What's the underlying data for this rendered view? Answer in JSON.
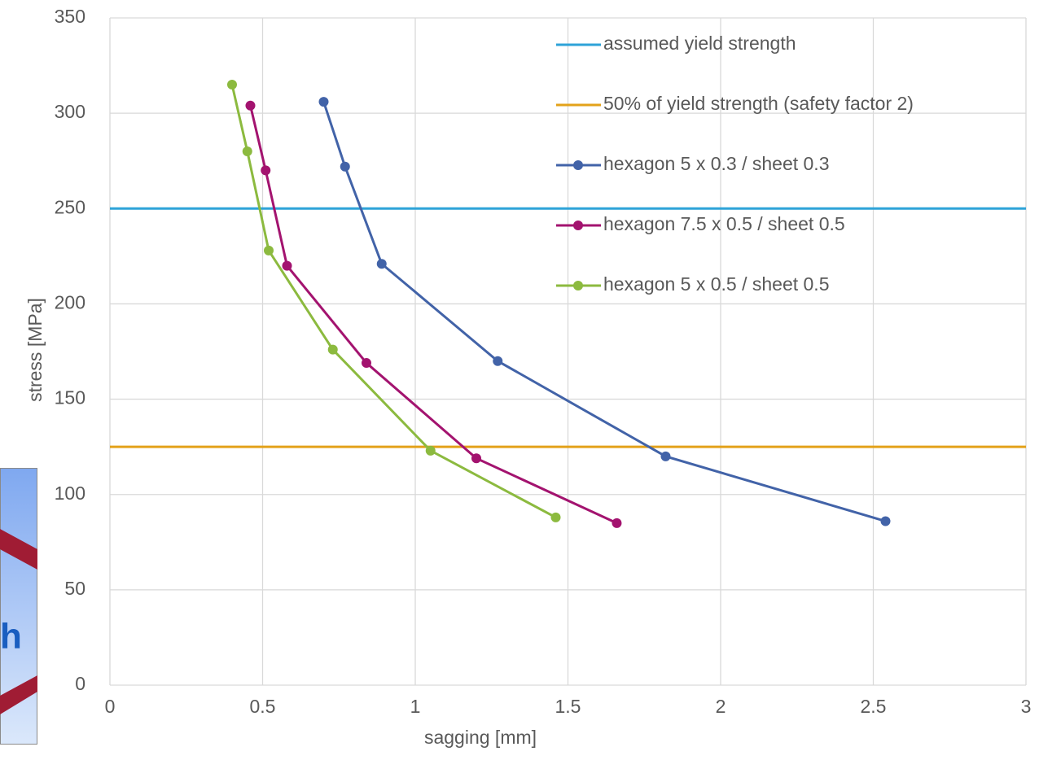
{
  "chart_data": {
    "type": "line",
    "xlabel": "sagging [mm]",
    "ylabel": "stress [MPa]",
    "xlim": [
      0,
      3
    ],
    "xticks": [
      0,
      0.5,
      1,
      1.5,
      2,
      2.5,
      3
    ],
    "ylim": [
      0,
      350
    ],
    "yticks": [
      0,
      50,
      100,
      150,
      200,
      250,
      300,
      350
    ],
    "grid": true,
    "legend": "upper right",
    "hlines": [
      {
        "name": "assumed yield strength",
        "color": "#2ea3d8",
        "value": 250
      },
      {
        "name": "50% of yield strength (safety factor 2)",
        "color": "#e3a21a",
        "value": 125
      }
    ],
    "series": [
      {
        "name": "hexagon 5 x 0.3 / sheet 0.3",
        "color": "#4263a8",
        "x": [
          0.7,
          0.77,
          0.89,
          1.27,
          1.82,
          2.54
        ],
        "values": [
          306,
          272,
          221,
          170,
          120,
          86
        ]
      },
      {
        "name": "hexagon 7.5 x 0.5 / sheet 0.5",
        "color": "#a3136f",
        "x": [
          0.46,
          0.51,
          0.58,
          0.84,
          1.2,
          1.66
        ],
        "values": [
          304,
          270,
          220,
          169,
          119,
          85
        ]
      },
      {
        "name": "hexagon 5 x 0.5 / sheet 0.5",
        "color": "#8cba3f",
        "x": [
          0.4,
          0.45,
          0.52,
          0.73,
          1.05,
          1.46
        ],
        "values": [
          315,
          280,
          228,
          176,
          123,
          88
        ]
      }
    ]
  },
  "fragment": {
    "text": "h"
  }
}
